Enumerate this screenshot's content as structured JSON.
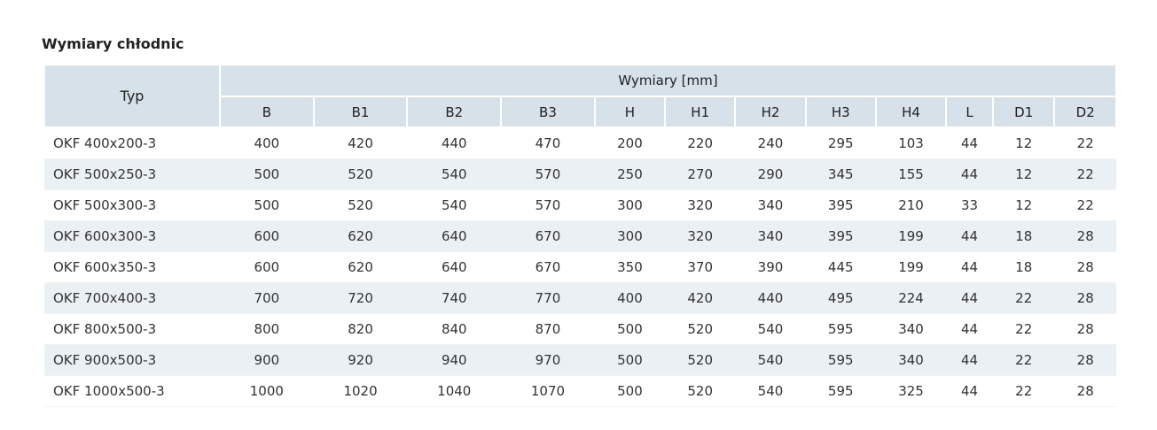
{
  "title": "Wymiary chłodnic",
  "table": {
    "type_header": "Typ",
    "group_header": "Wymiary [mm]",
    "columns": [
      "B",
      "B1",
      "B2",
      "B3",
      "H",
      "H1",
      "H2",
      "H3",
      "H4",
      "L",
      "D1",
      "D2"
    ],
    "rows": [
      {
        "type": "OKF 400x200-3",
        "values": [
          "400",
          "420",
          "440",
          "470",
          "200",
          "220",
          "240",
          "295",
          "103",
          "44",
          "12",
          "22"
        ]
      },
      {
        "type": "OKF 500x250-3",
        "values": [
          "500",
          "520",
          "540",
          "570",
          "250",
          "270",
          "290",
          "345",
          "155",
          "44",
          "12",
          "22"
        ]
      },
      {
        "type": "OKF 500x300-3",
        "values": [
          "500",
          "520",
          "540",
          "570",
          "300",
          "320",
          "340",
          "395",
          "210",
          "33",
          "12",
          "22"
        ]
      },
      {
        "type": "OKF 600x300-3",
        "values": [
          "600",
          "620",
          "640",
          "670",
          "300",
          "320",
          "340",
          "395",
          "199",
          "44",
          "18",
          "28"
        ]
      },
      {
        "type": "OKF 600x350-3",
        "values": [
          "600",
          "620",
          "640",
          "670",
          "350",
          "370",
          "390",
          "445",
          "199",
          "44",
          "18",
          "28"
        ]
      },
      {
        "type": "OKF 700x400-3",
        "values": [
          "700",
          "720",
          "740",
          "770",
          "400",
          "420",
          "440",
          "495",
          "224",
          "44",
          "22",
          "28"
        ]
      },
      {
        "type": "OKF 800x500-3",
        "values": [
          "800",
          "820",
          "840",
          "870",
          "500",
          "520",
          "540",
          "595",
          "340",
          "44",
          "22",
          "28"
        ]
      },
      {
        "type": "OKF 900x500-3",
        "values": [
          "900",
          "920",
          "940",
          "970",
          "500",
          "520",
          "540",
          "595",
          "340",
          "44",
          "22",
          "28"
        ]
      },
      {
        "type": "OKF 1000x500-3",
        "values": [
          "1000",
          "1020",
          "1040",
          "1070",
          "500",
          "520",
          "540",
          "595",
          "325",
          "44",
          "22",
          "28"
        ]
      }
    ]
  },
  "colors": {
    "header_bg": "#d6e1ea",
    "stripe_bg": "#ebf0f4"
  }
}
